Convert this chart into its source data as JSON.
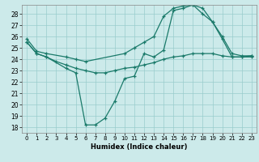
{
  "xlabel": "Humidex (Indice chaleur)",
  "bg_color": "#cceaea",
  "grid_color": "#99cccc",
  "line_color": "#1a7a6a",
  "xlim": [
    -0.5,
    23.5
  ],
  "ylim": [
    17.5,
    28.8
  ],
  "yticks": [
    18,
    19,
    20,
    21,
    22,
    23,
    24,
    25,
    26,
    27,
    28
  ],
  "xticks": [
    0,
    1,
    2,
    3,
    4,
    5,
    6,
    7,
    8,
    9,
    10,
    11,
    12,
    13,
    14,
    15,
    16,
    17,
    18,
    19,
    20,
    21,
    22,
    23
  ],
  "line1_x": [
    0,
    1,
    2,
    4,
    5,
    6,
    10,
    11,
    12,
    13,
    14,
    15,
    16,
    17,
    18,
    19,
    20,
    21,
    22,
    23
  ],
  "line1_y": [
    25.8,
    24.7,
    24.5,
    24.2,
    24.0,
    23.8,
    24.5,
    25.0,
    25.5,
    26.0,
    27.8,
    28.5,
    28.7,
    28.8,
    28.0,
    27.3,
    25.8,
    24.2,
    24.2,
    24.3
  ],
  "line2_x": [
    0,
    1,
    2,
    4,
    5,
    6,
    7,
    8,
    9,
    10,
    11,
    12,
    13,
    14,
    15,
    16,
    17,
    18,
    19,
    20,
    21,
    22,
    23
  ],
  "line2_y": [
    25.5,
    24.5,
    24.2,
    23.2,
    22.8,
    18.2,
    18.2,
    18.8,
    20.3,
    22.3,
    22.5,
    24.5,
    24.2,
    24.8,
    28.3,
    28.5,
    28.8,
    28.5,
    27.3,
    26.0,
    24.5,
    24.3,
    24.3
  ],
  "line3_x": [
    0,
    1,
    2,
    3,
    4,
    5,
    6,
    7,
    8,
    9,
    10,
    11,
    12,
    13,
    14,
    15,
    16,
    17,
    18,
    19,
    20,
    21,
    22,
    23
  ],
  "line3_y": [
    25.5,
    24.5,
    24.2,
    23.8,
    23.5,
    23.2,
    23.0,
    22.8,
    22.8,
    23.0,
    23.2,
    23.3,
    23.5,
    23.7,
    24.0,
    24.2,
    24.3,
    24.5,
    24.5,
    24.5,
    24.3,
    24.2,
    24.2,
    24.2
  ]
}
